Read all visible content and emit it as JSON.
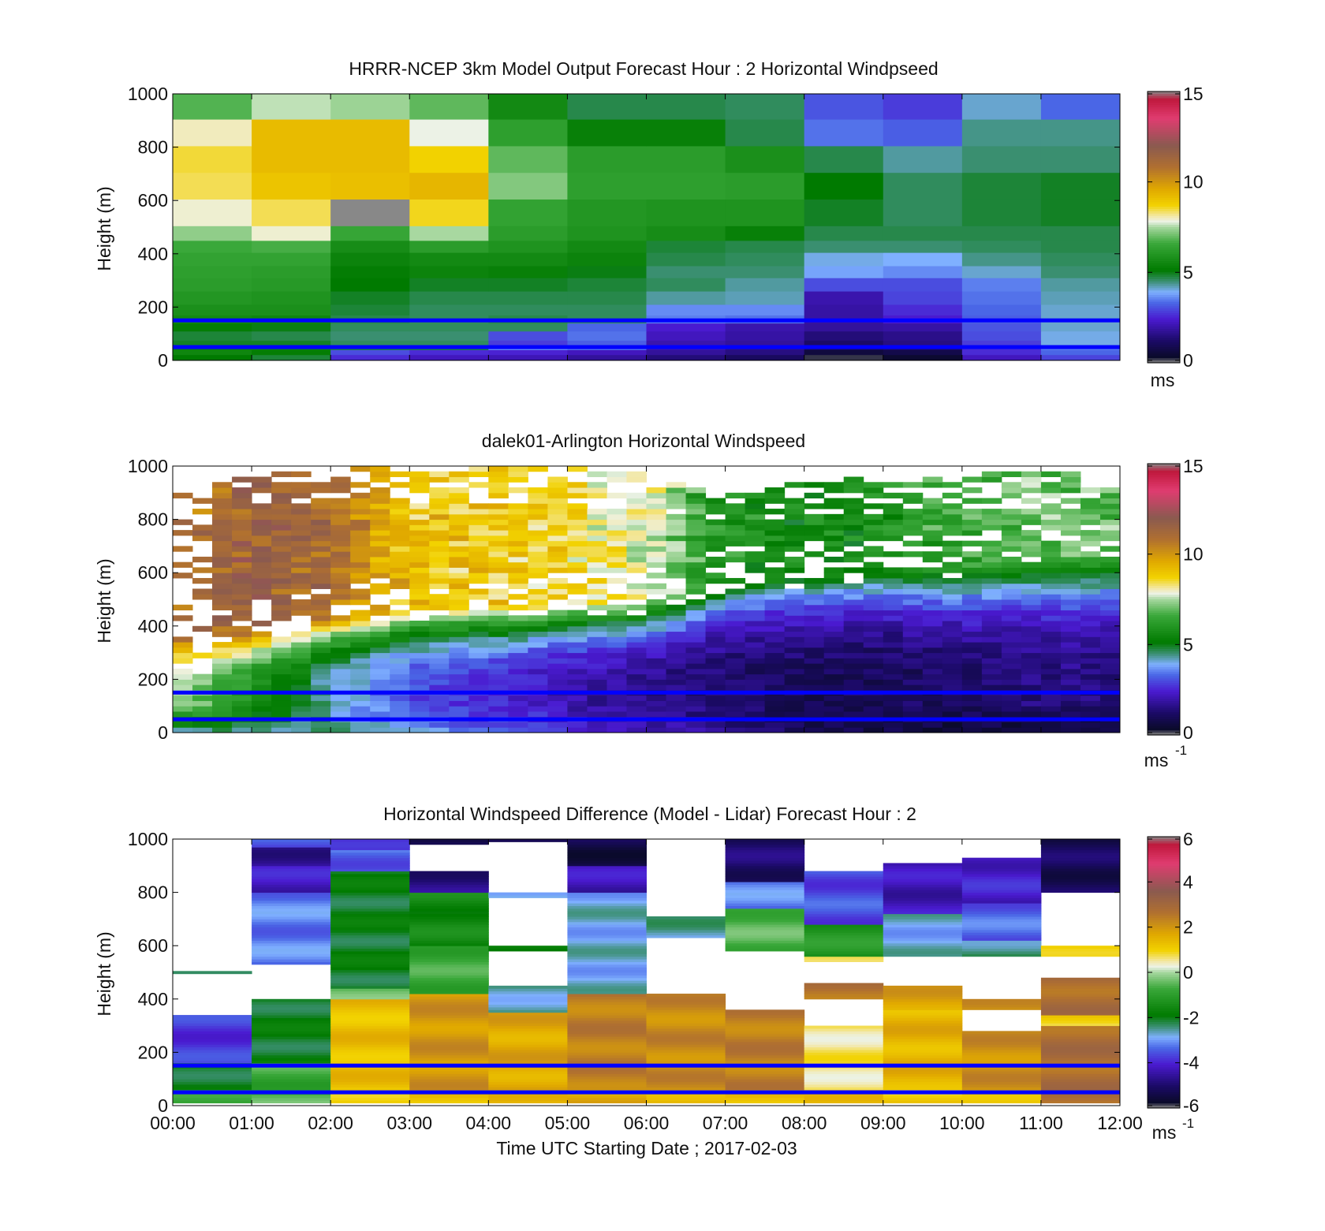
{
  "chart_data": [
    {
      "type": "heatmap",
      "title": "HRRR-NCEP 3km Model Output   Forecast Hour : 2 Horizontal Windpseed",
      "ylabel": "Height (m)",
      "xlabel": "",
      "xlim": [
        "00:00",
        "12:00"
      ],
      "ylim": [
        0,
        1000
      ],
      "y_ticks": [
        "0",
        "200",
        "400",
        "600",
        "800",
        "1000"
      ],
      "x_ticks_labeled": false,
      "x_step_hours": 1,
      "height_levels_m": [
        20,
        40,
        55,
        75,
        110,
        140,
        170,
        210,
        260,
        310,
        355,
        405,
        450,
        505,
        605,
        705,
        805,
        905,
        1000
      ],
      "values_ms": [
        [
          5.5,
          5.2,
          3.0,
          2.6,
          2.5,
          2.2,
          1.8,
          1.5,
          0.6,
          0.8,
          2.6,
          3.3
        ],
        [
          5.0,
          5.0,
          4.8,
          4.8,
          3.6,
          3.4,
          2.0,
          1.6,
          1.0,
          1.2,
          2.6,
          3.5
        ],
        [
          4.9,
          4.9,
          4.6,
          4.6,
          2.8,
          3.2,
          2.0,
          1.8,
          1.2,
          1.5,
          2.8,
          4.0
        ],
        [
          4.8,
          4.7,
          4.5,
          4.5,
          3.0,
          3.4,
          2.2,
          1.9,
          1.4,
          1.6,
          3.0,
          4.0
        ],
        [
          5.2,
          5.0,
          4.6,
          4.6,
          4.6,
          3.3,
          2.4,
          2.0,
          1.8,
          1.9,
          3.1,
          4.1
        ],
        [
          5.6,
          5.5,
          4.7,
          4.6,
          4.7,
          4.6,
          3.5,
          3.4,
          1.9,
          2.4,
          3.2,
          4.1
        ],
        [
          5.8,
          5.8,
          4.8,
          4.6,
          4.6,
          4.6,
          3.6,
          3.6,
          1.9,
          2.6,
          3.3,
          4.1
        ],
        [
          6.0,
          5.9,
          4.9,
          4.7,
          4.7,
          4.7,
          4.3,
          4.2,
          2.0,
          2.9,
          3.4,
          4.2
        ],
        [
          6.2,
          6.1,
          5.1,
          4.9,
          4.9,
          4.8,
          4.6,
          4.3,
          3.0,
          3.0,
          3.5,
          4.3
        ],
        [
          6.3,
          6.2,
          5.2,
          5.4,
          5.3,
          5.0,
          4.5,
          4.5,
          3.8,
          3.6,
          4.1,
          4.5
        ],
        [
          6.4,
          6.4,
          5.4,
          5.6,
          5.6,
          5.4,
          4.7,
          4.6,
          4.0,
          3.9,
          4.4,
          4.6
        ],
        [
          6.6,
          6.7,
          5.7,
          6.2,
          5.9,
          5.6,
          4.8,
          4.7,
          4.5,
          4.5,
          4.6,
          4.7
        ],
        [
          7.3,
          7.9,
          6.5,
          7.5,
          6.2,
          5.9,
          5.7,
          5.3,
          4.7,
          4.7,
          4.7,
          4.7
        ],
        [
          7.9,
          8.4,
          15.5,
          8.6,
          6.4,
          6.0,
          5.9,
          5.9,
          4.9,
          4.6,
          4.8,
          4.9
        ],
        [
          8.4,
          9.0,
          9.1,
          9.3,
          7.2,
          6.3,
          6.3,
          6.2,
          5.1,
          4.6,
          4.8,
          4.9
        ],
        [
          8.5,
          9.2,
          9.2,
          8.7,
          6.9,
          6.2,
          6.2,
          5.8,
          4.7,
          4.3,
          4.5,
          4.5
        ],
        [
          8.0,
          9.2,
          9.2,
          7.8,
          6.3,
          5.3,
          5.3,
          4.7,
          3.4,
          3.2,
          4.4,
          4.4
        ],
        [
          6.8,
          7.6,
          7.4,
          6.9,
          5.6,
          4.7,
          4.7,
          4.6,
          3.1,
          2.8,
          4.1,
          3.3
        ]
      ],
      "lines_m": [
        50,
        150
      ],
      "colorbar": {
        "min": 0,
        "max": 15,
        "ticks": [
          "0",
          "5",
          "10",
          "15"
        ],
        "unit": "ms"
      }
    },
    {
      "type": "heatmap",
      "title": "dalek01-Arlington  Horizontal Windspeed",
      "ylabel": "Height (m)",
      "xlabel": "",
      "xlim": [
        "00:00",
        "12:00"
      ],
      "ylim": [
        0,
        1000
      ],
      "y_ticks": [
        "0",
        "200",
        "400",
        "600",
        "800",
        "1000"
      ],
      "x_ticks_labeled": false,
      "x_step_hours": 0.25,
      "height_step_m": 20,
      "profile": {
        "near_surface_ms": [
          4.6,
          4.5,
          4.3,
          3.8,
          3.2,
          2.6,
          2.2,
          1.6,
          1.0,
          0.8,
          0.6,
          0.5
        ],
        "low_jet_ms": [
          7.5,
          6.0,
          4.2,
          3.0,
          2.6,
          2.0,
          1.6,
          1.2,
          1.0,
          1.0,
          1.2,
          1.5
        ],
        "upper_ms": [
          10.5,
          11.5,
          11.0,
          9.0,
          8.8,
          8.5,
          7.8,
          6.0,
          5.5,
          5.8,
          6.5,
          7.0
        ],
        "top_of_data_m": [
          880,
          960,
          1000,
          1000,
          980,
          990,
          960,
          880,
          930,
          950,
          960,
          960
        ],
        "jet_base_m": [
          330,
          380,
          430,
          450,
          460,
          470,
          480,
          560,
          580,
          600,
          620,
          660
        ]
      },
      "lines_m": [
        50,
        150
      ],
      "colorbar": {
        "min": 0,
        "max": 15,
        "ticks": [
          "0",
          "5",
          "10",
          "15"
        ],
        "unit": "ms",
        "unit_exp": "-1"
      }
    },
    {
      "type": "heatmap",
      "title": "Horizontal Windspeed Difference (Model - Lidar) Forecast Hour : 2",
      "ylabel": "Height (m)",
      "xlabel": "Time UTC  Starting Date ; 2017-02-03",
      "x_ticks": [
        "00:00",
        "01:00",
        "02:00",
        "03:00",
        "04:00",
        "05:00",
        "06:00",
        "07:00",
        "08:00",
        "09:00",
        "10:00",
        "11:00",
        "12:00"
      ],
      "ylim": [
        0,
        1000
      ],
      "y_ticks": [
        "0",
        "200",
        "400",
        "600",
        "800",
        "1000"
      ],
      "x_step_hours": 1,
      "height_step_m": 10,
      "profiles": [
        {
          "hour": 0,
          "segments": [
            [
              10,
              60,
              -1.0
            ],
            [
              60,
              160,
              -2.0
            ],
            [
              160,
              340,
              -3.8
            ],
            [
              495,
              505,
              -2.5
            ]
          ]
        },
        {
          "hour": 1,
          "segments": [
            [
              10,
              60,
              -0.6
            ],
            [
              60,
              160,
              -0.8
            ],
            [
              160,
              400,
              -2.0
            ],
            [
              530,
              800,
              -3.2
            ],
            [
              800,
              900,
              -4.2
            ],
            [
              900,
              970,
              -4.6
            ],
            [
              970,
              1000,
              -3.6
            ]
          ]
        },
        {
          "hour": 2,
          "segments": [
            [
              10,
              60,
              1.2
            ],
            [
              60,
              400,
              1.3
            ],
            [
              400,
              440,
              -0.5
            ],
            [
              440,
              880,
              -2.0
            ],
            [
              880,
              960,
              -3.4
            ],
            [
              960,
              1000,
              -4.1
            ]
          ]
        },
        {
          "hour": 3,
          "segments": [
            [
              10,
              60,
              1.4
            ],
            [
              60,
              420,
              2.0
            ],
            [
              420,
              600,
              -0.8
            ],
            [
              600,
              800,
              -1.6
            ],
            [
              800,
              880,
              -4.8
            ],
            [
              980,
              1000,
              -5.2
            ]
          ]
        },
        {
          "hour": 4,
          "segments": [
            [
              10,
              60,
              1.3
            ],
            [
              60,
              350,
              1.7
            ],
            [
              350,
              450,
              -2.6
            ],
            [
              580,
              600,
              -2.0
            ],
            [
              780,
              800,
              -3.0
            ],
            [
              990,
              1000,
              -5.0
            ]
          ]
        },
        {
          "hour": 5,
          "segments": [
            [
              10,
              60,
              1.6
            ],
            [
              60,
              420,
              2.4
            ],
            [
              420,
              800,
              -2.8
            ],
            [
              800,
              900,
              -4.3
            ],
            [
              900,
              1000,
              -5.4
            ]
          ]
        },
        {
          "hour": 6,
          "segments": [
            [
              10,
              60,
              1.6
            ],
            [
              60,
              420,
              2.2
            ],
            [
              630,
              710,
              -2.6
            ]
          ]
        },
        {
          "hour": 7,
          "segments": [
            [
              10,
              60,
              1.4
            ],
            [
              60,
              360,
              2.4
            ],
            [
              580,
              740,
              -0.6
            ],
            [
              740,
              840,
              -3.2
            ],
            [
              840,
              1000,
              -5.0
            ]
          ]
        },
        {
          "hour": 8,
          "segments": [
            [
              10,
              60,
              1.2
            ],
            [
              60,
              300,
              0.6
            ],
            [
              400,
              460,
              2.6
            ],
            [
              540,
              560,
              1.0
            ],
            [
              560,
              680,
              -1.2
            ],
            [
              680,
              880,
              -3.6
            ]
          ]
        },
        {
          "hour": 9,
          "segments": [
            [
              10,
              60,
              1.0
            ],
            [
              60,
              360,
              1.5
            ],
            [
              360,
              450,
              1.8
            ],
            [
              560,
              720,
              -2.8
            ],
            [
              720,
              910,
              -4.3
            ]
          ]
        },
        {
          "hour": 10,
          "segments": [
            [
              10,
              60,
              1.4
            ],
            [
              60,
              280,
              2.1
            ],
            [
              360,
              400,
              2.0
            ],
            [
              560,
              620,
              -2.4
            ],
            [
              620,
              760,
              -3.4
            ],
            [
              760,
              930,
              -4.1
            ]
          ]
        },
        {
          "hour": 11,
          "segments": [
            [
              10,
              60,
              2.8
            ],
            [
              60,
              300,
              2.8
            ],
            [
              300,
              340,
              1.0
            ],
            [
              340,
              480,
              2.8
            ],
            [
              560,
              600,
              1.2
            ],
            [
              800,
              1000,
              -5.2
            ]
          ]
        }
      ],
      "lines_m": [
        50,
        150
      ],
      "colorbar": {
        "min": -6,
        "max": 6,
        "ticks": [
          "-6",
          "-4",
          "-2",
          "0",
          "2",
          "4",
          "6"
        ],
        "unit": "ms",
        "unit_exp": "-1"
      }
    }
  ],
  "colormap": {
    "stops": [
      [
        0.0,
        "#888888"
      ],
      [
        0.02,
        "#0a0a2a"
      ],
      [
        0.08,
        "#1b0a66"
      ],
      [
        0.16,
        "#4a1ad0"
      ],
      [
        0.22,
        "#4a66e6"
      ],
      [
        0.26,
        "#7fb0ff"
      ],
      [
        0.3,
        "#3a8f70"
      ],
      [
        0.34,
        "#007a00"
      ],
      [
        0.44,
        "#3aa83a"
      ],
      [
        0.5,
        "#a8d8a0"
      ],
      [
        0.52,
        "#ecf2e6"
      ],
      [
        0.54,
        "#f3e8a8"
      ],
      [
        0.58,
        "#f2d200"
      ],
      [
        0.64,
        "#e0a800"
      ],
      [
        0.72,
        "#b07030"
      ],
      [
        0.8,
        "#8a5a50"
      ],
      [
        0.9,
        "#e03c70"
      ],
      [
        0.97,
        "#c0183c"
      ],
      [
        1.0,
        "#888888"
      ]
    ],
    "marker_line_color": "#0000ff"
  }
}
